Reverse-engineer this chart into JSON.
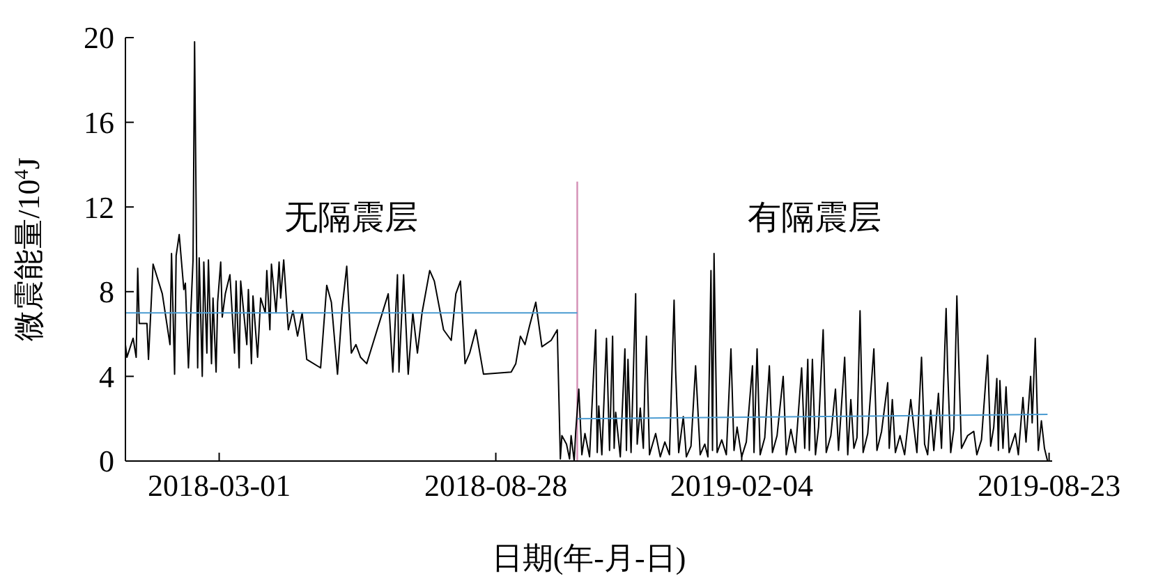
{
  "chart_data": {
    "type": "line",
    "xlabel": "日期(年-月-日)",
    "ylabel": "微震能量/10$^{4}$J",
    "xlim": [
      "2017-12-30",
      "2019-08-25"
    ],
    "xticks": [
      "2018-03-01",
      "2018-08-28",
      "2019-02-04",
      "2019-08-23"
    ],
    "ylim": [
      0,
      20
    ],
    "yticks": [
      0,
      4,
      8,
      12,
      16,
      20
    ],
    "grid": false,
    "marker": "none",
    "line_style": "solid",
    "annotations": [
      "无隔震层",
      "有隔震层"
    ],
    "ref_lines": [
      {
        "axis": "x",
        "value": "2018-10-20",
        "color": "#d48fb5"
      }
    ],
    "series": [
      {
        "color": "#000000",
        "x": [
          "2017-12-30",
          "2017-12-31",
          "2018-01-04",
          "2018-01-06",
          "2018-01-07",
          "2018-01-08",
          "2018-01-13",
          "2018-01-14",
          "2018-01-17",
          "2018-01-23",
          "2018-01-28",
          "2018-01-29",
          "2018-01-31",
          "2018-02-01",
          "2018-02-03",
          "2018-02-06",
          "2018-02-07",
          "2018-02-09",
          "2018-02-12",
          "2018-02-13",
          "2018-02-15",
          "2018-02-16",
          "2018-02-18",
          "2018-02-19",
          "2018-02-21",
          "2018-02-22",
          "2018-02-24",
          "2018-02-25",
          "2018-02-27",
          "2018-02-28",
          "2018-03-02",
          "2018-03-03",
          "2018-03-05",
          "2018-03-08",
          "2018-03-11",
          "2018-03-12",
          "2018-03-14",
          "2018-03-15",
          "2018-03-19",
          "2018-03-20",
          "2018-03-22",
          "2018-03-23",
          "2018-03-26",
          "2018-03-28",
          "2018-03-31",
          "2018-04-01",
          "2018-04-03",
          "2018-04-04",
          "2018-04-07",
          "2018-04-09",
          "2018-04-10",
          "2018-04-12",
          "2018-04-15",
          "2018-04-18",
          "2018-04-21",
          "2018-04-24",
          "2018-04-27",
          "2018-05-06",
          "2018-05-10",
          "2018-05-13",
          "2018-05-17",
          "2018-05-20",
          "2018-05-23",
          "2018-05-26",
          "2018-05-29",
          "2018-06-01",
          "2018-06-05",
          "2018-06-19",
          "2018-06-22",
          "2018-06-25",
          "2018-06-26",
          "2018-06-29",
          "2018-07-02",
          "2018-07-05",
          "2018-07-08",
          "2018-07-11",
          "2018-07-16",
          "2018-07-19",
          "2018-07-25",
          "2018-07-30",
          "2018-08-02",
          "2018-08-05",
          "2018-08-08",
          "2018-08-11",
          "2018-08-15",
          "2018-08-20",
          "2018-09-07",
          "2018-09-10",
          "2018-09-13",
          "2018-09-16",
          "2018-09-19",
          "2018-09-23",
          "2018-09-27",
          "2018-10-03",
          "2018-10-07",
          "2018-10-09",
          "2018-10-10",
          "2018-10-13",
          "2018-10-15",
          "2018-10-16",
          "2018-10-18",
          "2018-10-19",
          "2018-10-21",
          "2018-10-23",
          "2018-10-25",
          "2018-10-28",
          "2018-11-01",
          "2018-11-02",
          "2018-11-03",
          "2018-11-05",
          "2018-11-08",
          "2018-11-10",
          "2018-11-12",
          "2018-11-13",
          "2018-11-14",
          "2018-11-17",
          "2018-11-20",
          "2018-11-21",
          "2018-11-22",
          "2018-11-24",
          "2018-11-27",
          "2018-11-28",
          "2018-11-30",
          "2018-12-02",
          "2018-12-03",
          "2018-12-04",
          "2018-12-06",
          "2018-12-10",
          "2018-12-13",
          "2018-12-16",
          "2018-12-19",
          "2018-12-22",
          "2018-12-23",
          "2018-12-25",
          "2018-12-28",
          "2018-12-30",
          "2019-01-02",
          "2019-01-05",
          "2019-01-08",
          "2019-01-11",
          "2019-01-13",
          "2019-01-15",
          "2019-01-16",
          "2019-01-17",
          "2019-01-19",
          "2019-01-22",
          "2019-01-25",
          "2019-01-28",
          "2019-01-30",
          "2019-02-01",
          "2019-02-04",
          "2019-02-07",
          "2019-02-11",
          "2019-02-12",
          "2019-02-14",
          "2019-02-16",
          "2019-02-19",
          "2019-02-22",
          "2019-02-24",
          "2019-02-27",
          "2019-03-03",
          "2019-03-05",
          "2019-03-08",
          "2019-03-11",
          "2019-03-15",
          "2019-03-17",
          "2019-03-19",
          "2019-03-20",
          "2019-03-22",
          "2019-03-24",
          "2019-03-26",
          "2019-03-29",
          "2019-03-31",
          "2019-04-03",
          "2019-04-06",
          "2019-04-08",
          "2019-04-12",
          "2019-04-14",
          "2019-04-16",
          "2019-04-18",
          "2019-04-20",
          "2019-04-22",
          "2019-04-24",
          "2019-04-27",
          "2019-05-01",
          "2019-05-03",
          "2019-05-06",
          "2019-05-10",
          "2019-05-11",
          "2019-05-13",
          "2019-05-15",
          "2019-05-18",
          "2019-05-21",
          "2019-05-25",
          "2019-05-27",
          "2019-05-29",
          "2019-06-01",
          "2019-06-03",
          "2019-06-05",
          "2019-06-07",
          "2019-06-09",
          "2019-06-12",
          "2019-06-14",
          "2019-06-17",
          "2019-06-18",
          "2019-06-20",
          "2019-06-22",
          "2019-06-24",
          "2019-06-25",
          "2019-06-27",
          "2019-07-01",
          "2019-07-05",
          "2019-07-07",
          "2019-07-10",
          "2019-07-14",
          "2019-07-16",
          "2019-07-18",
          "2019-07-20",
          "2019-07-21",
          "2019-07-22",
          "2019-07-24",
          "2019-07-26",
          "2019-07-28",
          "2019-08-01",
          "2019-08-03",
          "2019-08-06",
          "2019-08-08",
          "2019-08-11",
          "2019-08-12",
          "2019-08-14",
          "2019-08-16",
          "2019-08-18",
          "2019-08-20",
          "2019-08-22"
        ],
        "values": [
          5.5,
          4.9,
          5.8,
          4.9,
          9.1,
          6.5,
          6.5,
          4.8,
          9.3,
          7.9,
          5.5,
          9.8,
          4.1,
          9.7,
          10.7,
          8.1,
          8.4,
          4.4,
          9.5,
          19.8,
          4.4,
          9.6,
          4.0,
          9.4,
          5.1,
          9.5,
          4.6,
          7.7,
          4.2,
          7.5,
          9.4,
          6.8,
          7.9,
          8.8,
          5.1,
          8.5,
          4.4,
          8.5,
          5.5,
          8.1,
          4.6,
          7.8,
          4.9,
          7.7,
          7.0,
          9.0,
          6.2,
          9.3,
          7.0,
          9.4,
          7.7,
          9.5,
          6.2,
          7.1,
          5.9,
          7.0,
          4.8,
          4.4,
          8.3,
          7.5,
          4.1,
          7.2,
          9.2,
          5.1,
          5.5,
          4.9,
          4.6,
          7.9,
          4.2,
          8.8,
          4.2,
          8.8,
          4.1,
          7.0,
          5.1,
          7.0,
          9.0,
          8.5,
          6.2,
          5.7,
          7.9,
          8.5,
          4.6,
          5.1,
          6.2,
          4.1,
          4.2,
          4.6,
          5.9,
          5.5,
          6.4,
          7.5,
          5.4,
          5.7,
          6.2,
          0.1,
          1.2,
          0.8,
          0.1,
          1.2,
          0,
          1.4,
          3.4,
          0.3,
          1.3,
          0.2,
          6.2,
          0.4,
          2.6,
          0.3,
          5.8,
          0.5,
          5.9,
          0.6,
          2.3,
          0.2,
          5.3,
          0.5,
          4.8,
          0.4,
          7.9,
          0.8,
          2.5,
          0.6,
          3.7,
          5.9,
          0.3,
          1.3,
          0.2,
          0.9,
          0.3,
          7.6,
          4.3,
          0.4,
          2.1,
          0.2,
          0.7,
          4.5,
          0.3,
          0.8,
          0.2,
          9.0,
          0.5,
          9.8,
          0.4,
          1.0,
          0.3,
          5.3,
          0.5,
          1.6,
          0.2,
          0.9,
          4.5,
          0.4,
          5.3,
          0.3,
          1.1,
          4.5,
          0.4,
          1.2,
          4.0,
          0.3,
          1.5,
          0.4,
          4.4,
          0.6,
          4.8,
          0.5,
          4.8,
          0.3,
          1.6,
          6.2,
          0.4,
          1.2,
          3.4,
          0.5,
          4.9,
          0.3,
          2.9,
          0.6,
          1.1,
          7.1,
          0.4,
          1.3,
          5.3,
          0.5,
          1.4,
          3.7,
          0.6,
          2.9,
          0.4,
          1.2,
          0.3,
          2.9,
          1.6,
          0.4,
          4.9,
          0.8,
          0.3,
          2.4,
          0.5,
          3.2,
          0.6,
          7.2,
          4.3,
          0.4,
          1.5,
          7.8,
          5.2,
          0.6,
          1.2,
          1.4,
          0.3,
          1.0,
          5.0,
          0.7,
          1.6,
          3.9,
          0.5,
          3.8,
          0.6,
          3.5,
          0.4,
          1.3,
          0.3,
          3.0,
          0.9,
          4.0,
          1.8,
          5.8,
          0.5,
          1.9,
          0.6,
          0
        ]
      },
      {
        "color": "#4a9bd1",
        "x": [
          "2017-12-30",
          "2018-10-20"
        ],
        "values": [
          7.0,
          7.0
        ]
      },
      {
        "color": "#4a9bd1",
        "x": [
          "2018-10-20",
          "2019-08-22"
        ],
        "values": [
          2.0,
          2.2
        ]
      }
    ]
  }
}
